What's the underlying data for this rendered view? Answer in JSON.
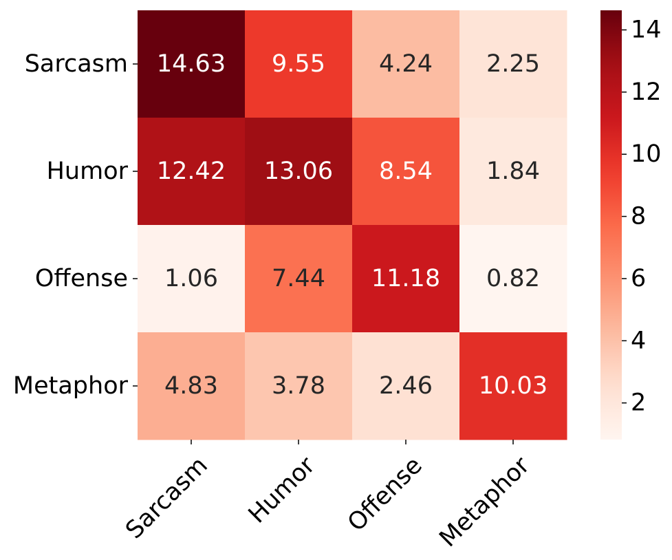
{
  "chart_data": {
    "type": "heatmap",
    "title": "",
    "xlabel": "",
    "ylabel": "",
    "x_categories": [
      "Sarcasm",
      "Humor",
      "Offense",
      "Metaphor"
    ],
    "y_categories": [
      "Sarcasm",
      "Humor",
      "Offense",
      "Metaphor"
    ],
    "values": [
      [
        14.63,
        9.55,
        4.24,
        2.25
      ],
      [
        12.42,
        13.06,
        8.54,
        1.84
      ],
      [
        1.06,
        7.44,
        11.18,
        0.82
      ],
      [
        4.83,
        3.78,
        2.46,
        10.03
      ]
    ],
    "value_labels": [
      [
        "14.63",
        "9.55",
        "4.24",
        "2.25"
      ],
      [
        "12.42",
        "13.06",
        "8.54",
        "1.84"
      ],
      [
        "1.06",
        "7.44",
        "11.18",
        "0.82"
      ],
      [
        "4.83",
        "3.78",
        "2.46",
        "10.03"
      ]
    ],
    "colormap": "Reds",
    "colorbar": {
      "min": 0.82,
      "max": 14.63,
      "ticks": [
        2,
        4,
        6,
        8,
        10,
        12,
        14
      ],
      "tick_labels": [
        "2",
        "4",
        "6",
        "8",
        "10",
        "12",
        "14"
      ]
    },
    "text_colors": {
      "light": "#ffffff",
      "dark": "#262626"
    },
    "palette": [
      "#fff5f0",
      "#fee0d2",
      "#fcbba1",
      "#fc9272",
      "#fb6a4a",
      "#ef3b2c",
      "#cb181d",
      "#a50f15",
      "#67000d"
    ]
  }
}
